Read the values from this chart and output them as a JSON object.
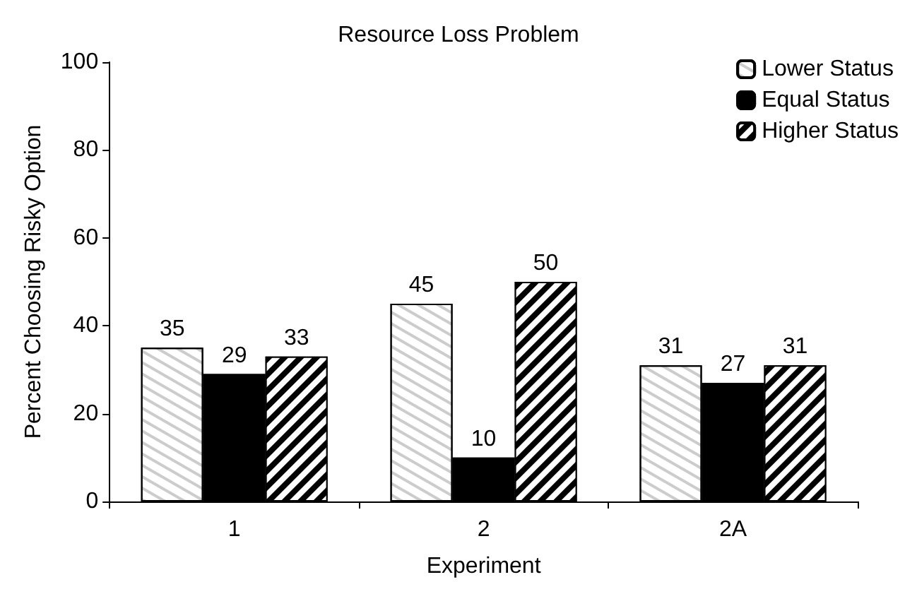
{
  "chart_data": {
    "type": "bar",
    "title": "Resource Loss Problem",
    "xlabel": "Experiment",
    "ylabel": "Percent Choosing Risky Option",
    "categories": [
      "1",
      "2",
      "2A"
    ],
    "series": [
      {
        "name": "Lower Status",
        "color": "#ffffff",
        "values": [
          35,
          45,
          31
        ]
      },
      {
        "name": "Equal Status",
        "color": "#000000",
        "values": [
          29,
          10,
          27
        ]
      },
      {
        "name": "Higher Status",
        "color": "#000000",
        "values": [
          33,
          50,
          31
        ]
      }
    ],
    "ylim": [
      0,
      100
    ],
    "yticks": [
      0,
      20,
      40,
      60,
      80,
      100
    ],
    "grid": false,
    "legend": "top right",
    "data_labels": true
  }
}
